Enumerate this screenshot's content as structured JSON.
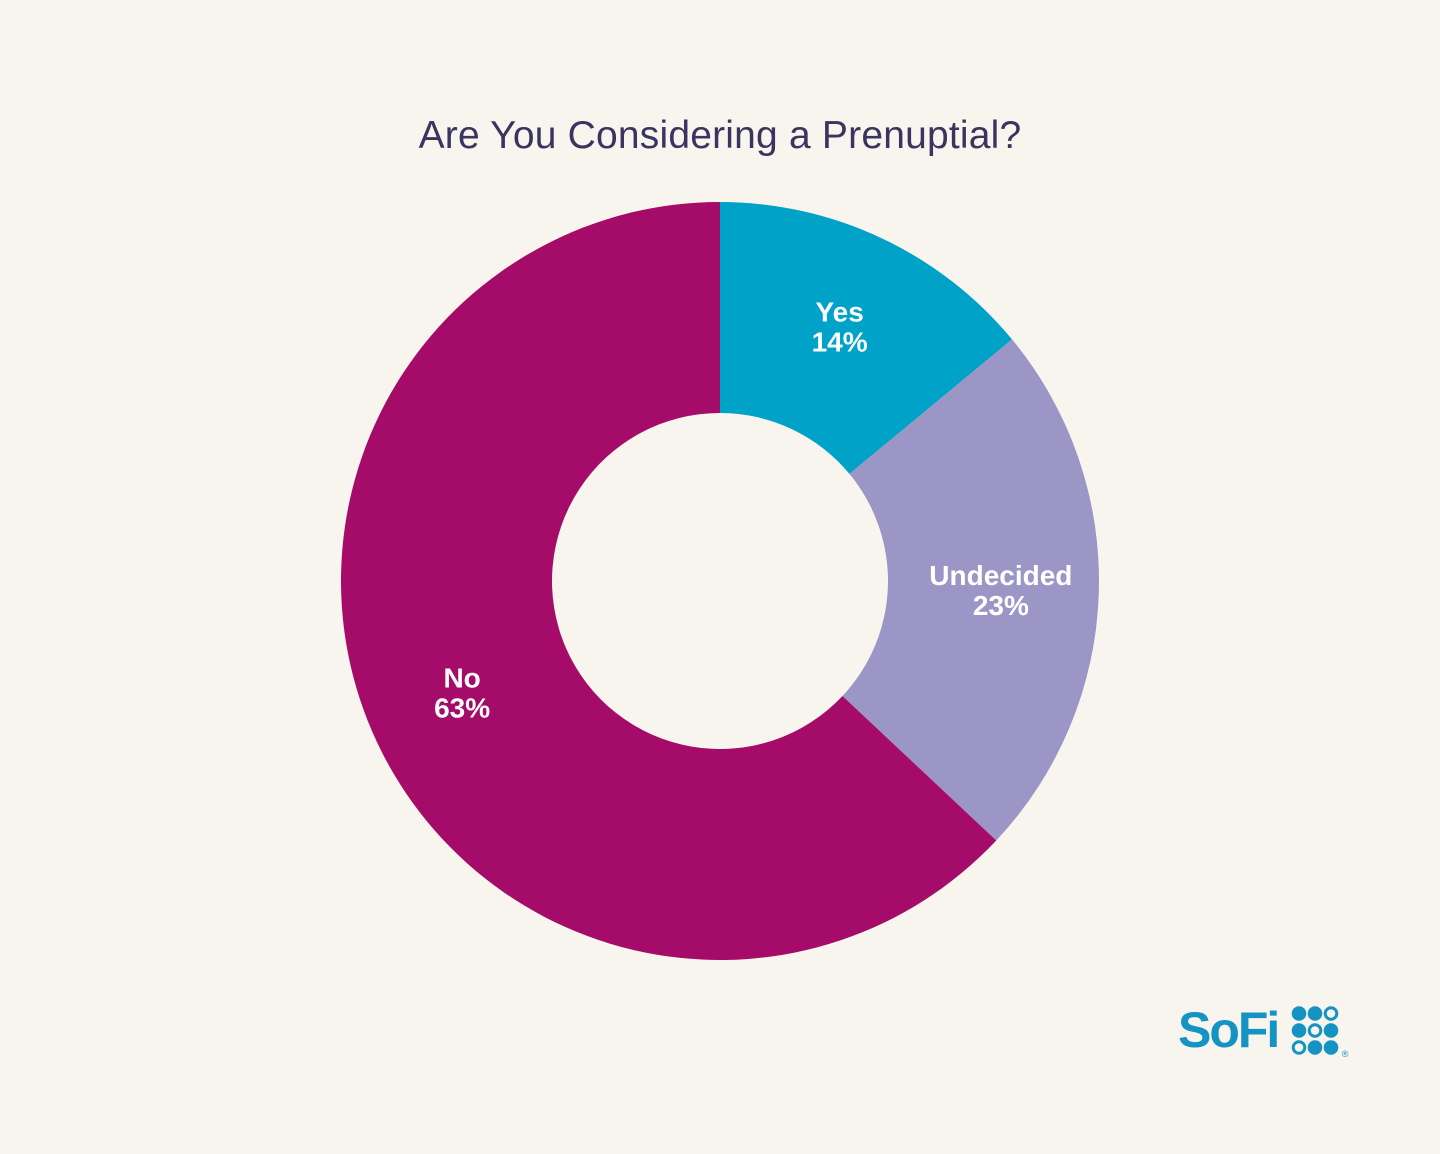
{
  "page": {
    "background_color": "#F8F5EF"
  },
  "chart_data": {
    "type": "pie",
    "subtype": "donut",
    "title": "Are You Considering a Prenuptial?",
    "title_color": "#3A355E",
    "categories": [
      "Yes",
      "Undecided",
      "No"
    ],
    "values": [
      14,
      23,
      63
    ],
    "unit": "%",
    "colors": [
      "#00A2C7",
      "#9C96C6",
      "#A50B69"
    ],
    "label_color": "#FFFFFF",
    "start_angle_deg": 0,
    "direction": "clockwise",
    "legend": "none",
    "labels_inside_slices": true
  },
  "logo": {
    "text": "SoFi",
    "registered_mark": "®",
    "color": "#1593C2",
    "dot_grid": [
      [
        1,
        1,
        0
      ],
      [
        1,
        0,
        1
      ],
      [
        0,
        1,
        1
      ]
    ]
  }
}
